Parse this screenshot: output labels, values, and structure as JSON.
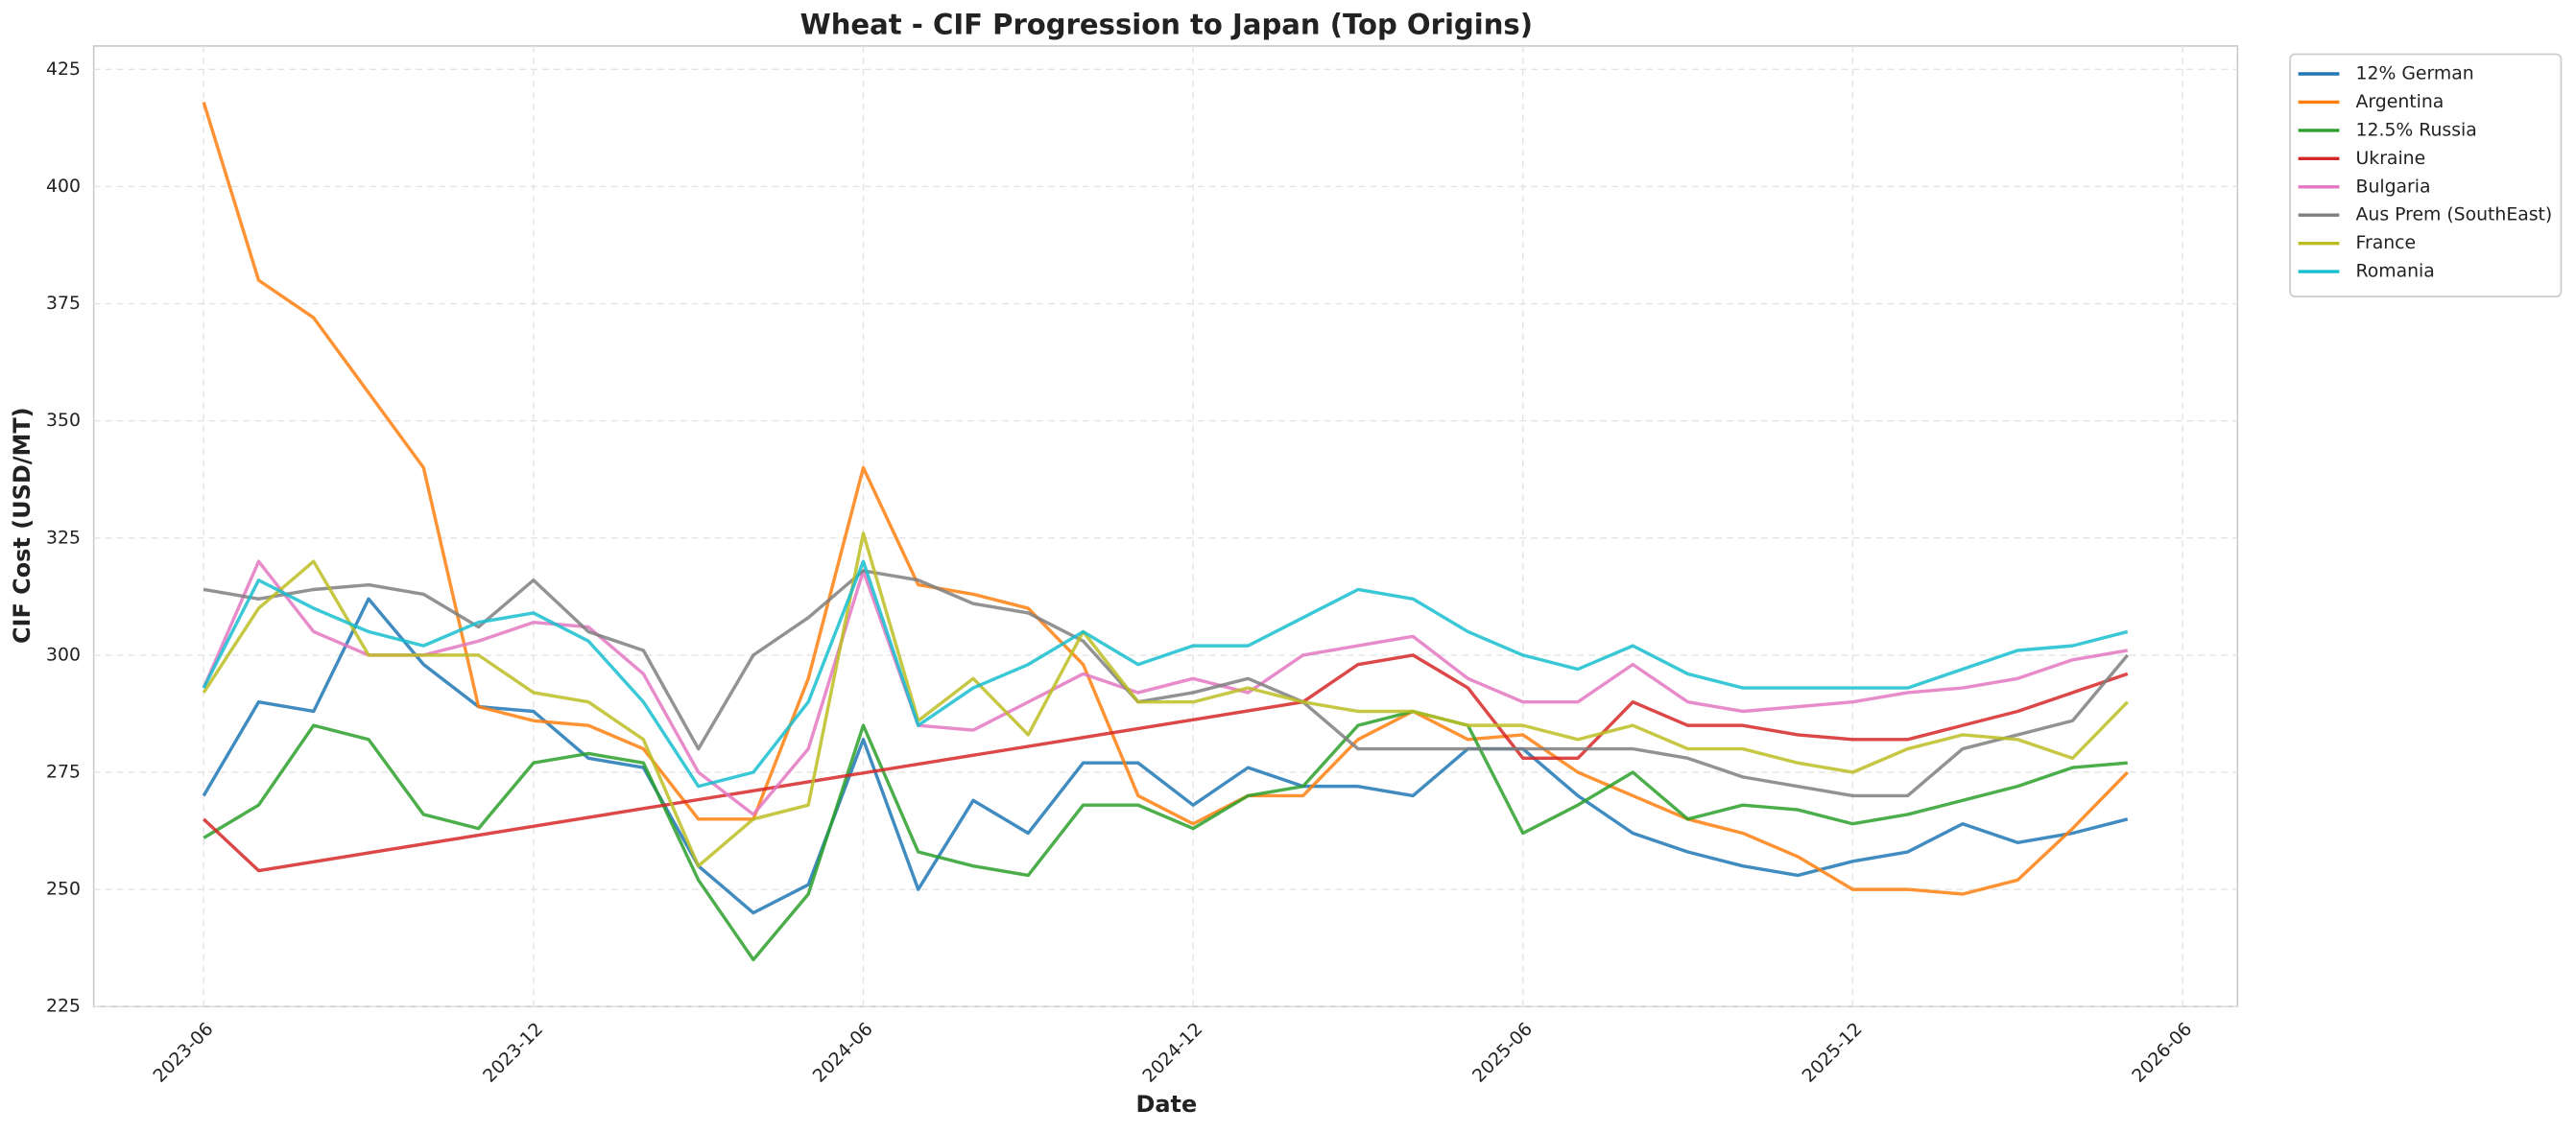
{
  "chart_data": {
    "type": "line",
    "title": "Wheat - CIF Progression to Japan (Top Origins)",
    "x_label": "Date",
    "y_label": "CIF Cost (USD/MT)",
    "x": [
      "2023-06",
      "2023-07",
      "2023-08",
      "2023-09",
      "2023-10",
      "2023-11",
      "2023-12",
      "2024-01",
      "2024-02",
      "2024-03",
      "2024-04",
      "2024-05",
      "2024-06",
      "2024-07",
      "2024-08",
      "2024-09",
      "2024-10",
      "2024-11",
      "2024-12",
      "2025-01",
      "2025-02",
      "2025-03",
      "2025-04",
      "2025-05",
      "2025-06",
      "2025-07",
      "2025-08",
      "2025-09",
      "2025-10",
      "2025-11",
      "2025-12",
      "2026-01",
      "2026-02",
      "2026-03",
      "2026-04",
      "2026-05"
    ],
    "series": [
      {
        "name": "12% German",
        "color": "#1f77b4",
        "values": [
          270,
          290,
          288,
          312,
          298,
          289,
          288,
          278,
          276,
          255,
          245,
          251,
          282,
          250,
          269,
          262,
          277,
          277,
          268,
          276,
          272,
          272,
          270,
          280,
          280,
          270,
          262,
          258,
          255,
          253,
          256,
          258,
          264,
          260,
          262,
          265
        ]
      },
      {
        "name": "Argentina",
        "color": "#ff7f0e",
        "values": [
          418,
          380,
          372,
          356,
          340,
          289,
          286,
          285,
          280,
          265,
          265,
          295,
          340,
          315,
          313,
          310,
          298,
          270,
          264,
          270,
          270,
          282,
          288,
          282,
          283,
          275,
          270,
          265,
          262,
          257,
          250,
          250,
          249,
          252,
          263,
          275
        ]
      },
      {
        "name": "12.5% Russia",
        "color": "#2ca02c",
        "values": [
          261,
          268,
          285,
          282,
          266,
          263,
          277,
          279,
          277,
          252,
          235,
          249,
          285,
          258,
          255,
          253,
          268,
          268,
          263,
          270,
          272,
          285,
          288,
          285,
          262,
          268,
          275,
          265,
          268,
          267,
          264,
          266,
          269,
          272,
          276,
          277
        ]
      },
      {
        "name": "Ukraine",
        "color": "#d62728",
        "x": [
          "2023-06",
          "2023-07",
          "2025-02",
          "2025-03",
          "2025-04",
          "2025-05",
          "2025-06",
          "2025-07",
          "2025-08",
          "2025-09",
          "2025-10",
          "2025-11",
          "2025-12",
          "2026-01",
          "2026-02",
          "2026-03",
          "2026-04",
          "2026-05"
        ],
        "values": [
          265,
          254,
          290,
          298,
          300,
          293,
          278,
          278,
          290,
          285,
          285,
          283,
          282,
          282,
          285,
          288,
          292,
          296
        ]
      },
      {
        "name": "Bulgaria",
        "color": "#e377c2",
        "values": [
          293,
          320,
          305,
          300,
          300,
          303,
          307,
          306,
          296,
          275,
          266,
          280,
          318,
          285,
          284,
          290,
          296,
          292,
          295,
          292,
          300,
          302,
          304,
          295,
          290,
          290,
          298,
          290,
          288,
          289,
          290,
          292,
          293,
          295,
          299,
          301
        ]
      },
      {
        "name": "Aus Prem (SouthEast)",
        "color": "#7f7f7f",
        "values": [
          314,
          312,
          314,
          315,
          313,
          306,
          316,
          305,
          301,
          280,
          300,
          308,
          318,
          316,
          311,
          309,
          303,
          290,
          292,
          295,
          290,
          280,
          280,
          280,
          280,
          280,
          280,
          278,
          274,
          272,
          270,
          270,
          280,
          283,
          286,
          300
        ]
      },
      {
        "name": "France",
        "color": "#bcbd22",
        "values": [
          292,
          310,
          320,
          300,
          300,
          300,
          292,
          290,
          282,
          255,
          265,
          268,
          326,
          286,
          295,
          283,
          305,
          290,
          290,
          293,
          290,
          288,
          288,
          285,
          285,
          282,
          285,
          280,
          280,
          277,
          275,
          280,
          283,
          282,
          278,
          290
        ]
      },
      {
        "name": "Romania",
        "color": "#17becf",
        "values": [
          293,
          316,
          310,
          305,
          302,
          307,
          309,
          303,
          290,
          272,
          275,
          290,
          320,
          285,
          293,
          298,
          305,
          298,
          302,
          302,
          308,
          314,
          312,
          305,
          300,
          297,
          302,
          296,
          293,
          293,
          293,
          293,
          297,
          301,
          302,
          305
        ]
      }
    ],
    "xlim": [
      "2023-04",
      "2026-07"
    ],
    "xticks": [
      "2023-06",
      "2023-12",
      "2024-06",
      "2024-12",
      "2025-06",
      "2025-12",
      "2026-06"
    ],
    "ylim": [
      225,
      430
    ],
    "yticks": [
      225,
      250,
      275,
      300,
      325,
      350,
      375,
      400,
      425
    ],
    "grid": true,
    "legend": "upper-right"
  }
}
